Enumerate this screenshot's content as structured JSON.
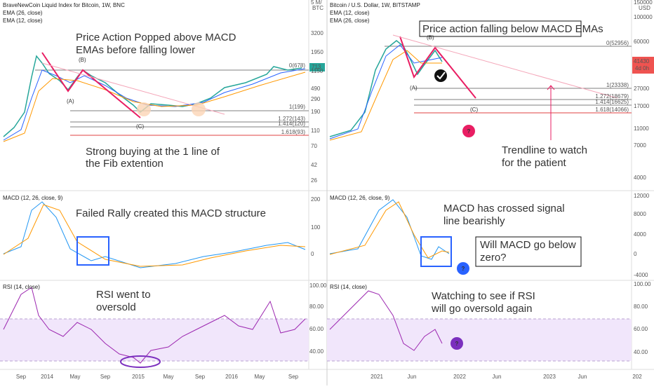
{
  "left": {
    "header": {
      "title": "BraveNewCoin Liquid Index for Bitcoin, 1W, BNC",
      "ema_a": "EMA (26, close)",
      "ema_b": "EMA (12, close)"
    },
    "price_axis": {
      "unit_a": "5 M/",
      "unit_b": "BTC",
      "labels": [
        "3200",
        "1950",
        "1150",
        "490",
        "290",
        "190",
        "110",
        "70",
        "42",
        "26"
      ],
      "badge": "713"
    },
    "macd_axis": {
      "labels": [
        "200",
        "100",
        "0"
      ]
    },
    "rsi_axis": {
      "labels": [
        "100.00",
        "80.00",
        "60.00",
        "40.00"
      ]
    },
    "time_axis": [
      "Sep",
      "2014",
      "May",
      "Sep",
      "2015",
      "May",
      "Sep",
      "2016",
      "May",
      "Sep"
    ],
    "fib": [
      "0(678)",
      "1(199)",
      "1.272(143)",
      "1.414(120)",
      "1.618(93)"
    ],
    "points": {
      "a": "(A)",
      "b": "(B)",
      "c": "(C)"
    },
    "notes": {
      "price_1": "Price Action Popped above MACD",
      "price_2": "EMAs before falling lower",
      "fib_1": "Strong buying at the 1 line of",
      "fib_2": "the Fib extention",
      "macd": "Failed Rally created this MACD structure",
      "rsi_1": "RSI went to",
      "rsi_2": "oversold"
    },
    "macd_title": "MACD (12, 26, close, 9)",
    "rsi_title": "RSI (14, close)"
  },
  "right": {
    "header": {
      "title": "Bitcoin / U.S. Dollar, 1W, BITSTAMP",
      "ema_a": "EMA (12, close)",
      "ema_b": "EMA (26, close)"
    },
    "price_axis": {
      "unit": "USD",
      "labels": [
        "150000",
        "100000",
        "60000",
        "27000",
        "17000",
        "11000",
        "7000",
        "4000"
      ],
      "badge": "41430",
      "countdown": "4d 0h"
    },
    "macd_axis": {
      "labels": [
        "12000",
        "8000",
        "4000",
        "0",
        "-4000"
      ]
    },
    "rsi_axis": {
      "labels": [
        "100.00",
        "80.00",
        "60.00",
        "40.00"
      ]
    },
    "time_axis": [
      "2021",
      "Jun",
      "2022",
      "Jun",
      "2023",
      "Jun",
      "202"
    ],
    "fib": [
      "0(52956)",
      "1(23338)",
      "1.272(18679)",
      "1.414(16625)",
      "1.618(14066)"
    ],
    "points": {
      "a": "(A)",
      "b": "(B)",
      "c": "(C)"
    },
    "notes": {
      "price": "Price action falling below MACD EMAs",
      "trend_1": "Trendline to watch",
      "trend_2": "for the patient",
      "macd_1": "MACD has crossed signal",
      "macd_2": "line bearishly",
      "zero_1": "Will MACD go below",
      "zero_2": "zero?",
      "rsi_1": "Watching to see if RSI",
      "rsi_2": "will go oversold again"
    },
    "macd_title": "MACD (12, 26, close, 9)",
    "rsi_title": "RSI (14, close)"
  }
}
